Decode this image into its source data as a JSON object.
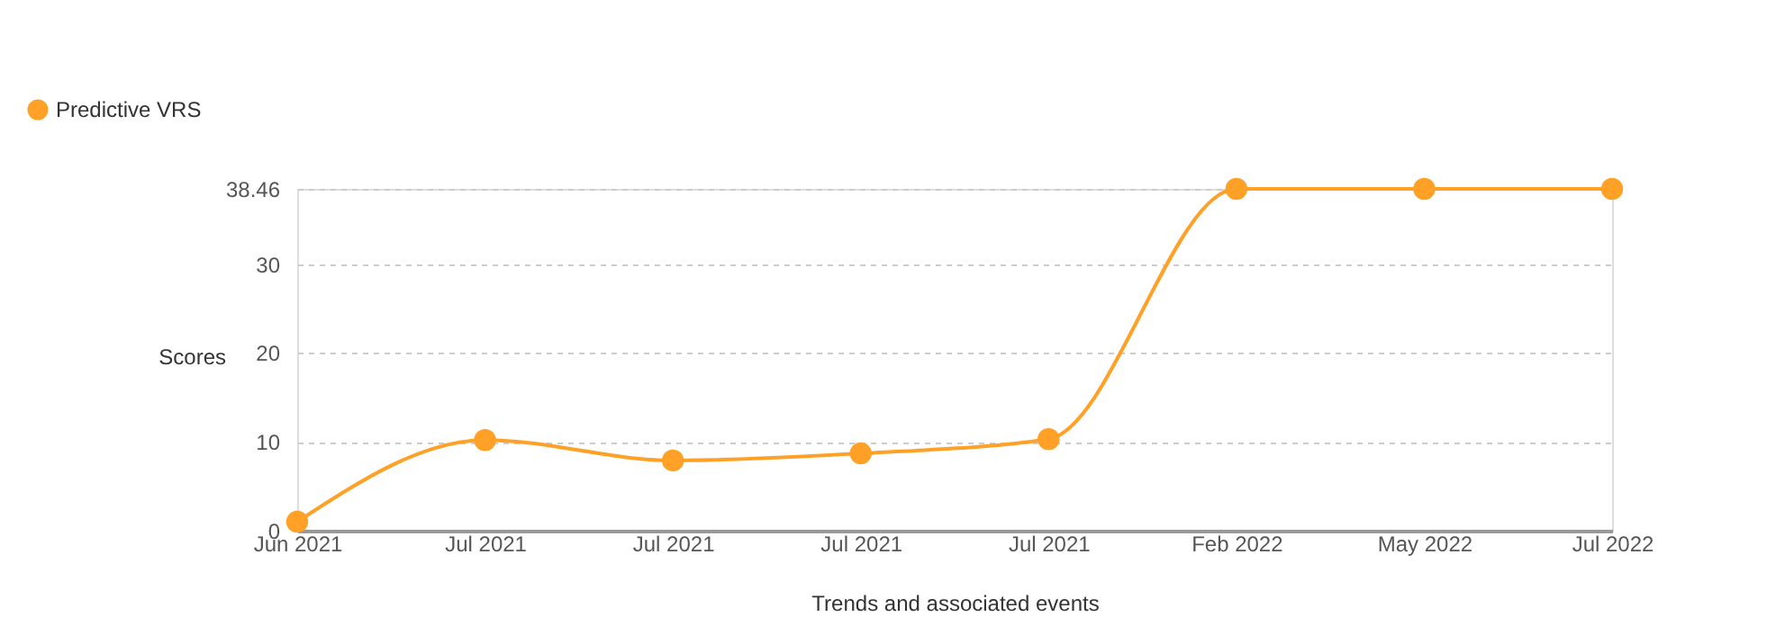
{
  "chart_data": {
    "type": "line",
    "xlabel": "Trends and associated events",
    "ylabel": "Scores",
    "categories": [
      "Jun 2021",
      "Jul 2021",
      "Jul 2021",
      "Jul 2021",
      "Jul 2021",
      "Feb 2022",
      "May 2022",
      "Jul 2022"
    ],
    "series": [
      {
        "name": "Predictive VRS",
        "color": "#ffa126",
        "values": [
          1.0,
          10.2,
          7.9,
          8.7,
          10.3,
          38.46,
          38.46,
          38.46
        ]
      }
    ],
    "ylim": [
      0,
      38.46
    ],
    "yticks": [
      0,
      10,
      20,
      30,
      38.46
    ],
    "grid": "y",
    "legend": "top left",
    "marker": "circle",
    "line_style": "solid"
  }
}
